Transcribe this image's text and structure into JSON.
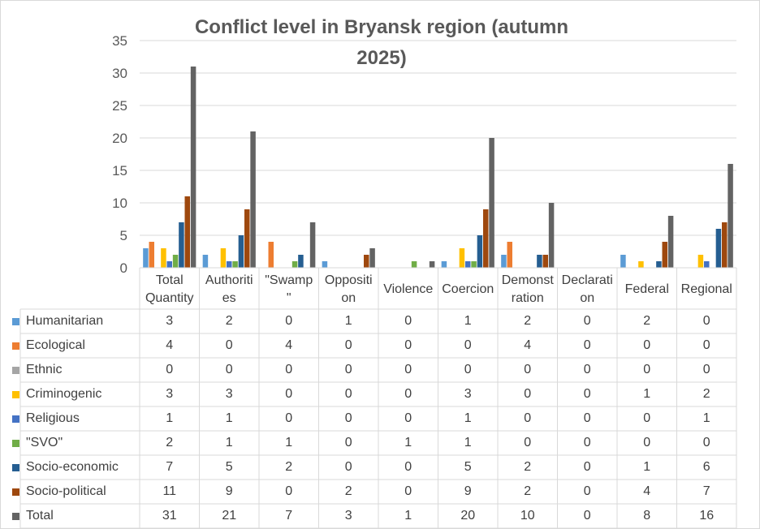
{
  "chart_data": {
    "type": "bar",
    "title": "Conflict level in Bryansk region (autumn 2025)",
    "title_lines": [
      "Conflict level in Bryansk region (autumn",
      "2025)"
    ],
    "xlabel": "",
    "ylabel": "",
    "ylim": [
      0,
      35
    ],
    "yticks": [
      0,
      5,
      10,
      15,
      20,
      25,
      30,
      35
    ],
    "grid": true,
    "legend": "data-table-left",
    "categories": [
      "Total Quantity",
      "Authorities",
      "\"Swamp\"",
      "Opposition",
      "Violence",
      "Coercion",
      "Demonstration",
      "Declaration",
      "Federal",
      "Regional"
    ],
    "category_label_lines": [
      [
        "Total",
        "Quantity"
      ],
      [
        "Authoriti",
        "es"
      ],
      [
        "\"Swamp",
        "\""
      ],
      [
        "Oppositi",
        "on"
      ],
      [
        "Violence"
      ],
      [
        "Coercion"
      ],
      [
        "Demonst",
        "ration"
      ],
      [
        "Declarati",
        "on"
      ],
      [
        "Federal"
      ],
      [
        "Regional"
      ]
    ],
    "series": [
      {
        "name": "Humanitarian",
        "color": "#5b9bd5",
        "values": [
          3,
          2,
          0,
          1,
          0,
          1,
          2,
          0,
          2,
          0
        ]
      },
      {
        "name": "Ecological",
        "color": "#ed7d31",
        "values": [
          4,
          0,
          4,
          0,
          0,
          0,
          4,
          0,
          0,
          0
        ]
      },
      {
        "name": "Ethnic",
        "color": "#a5a5a5",
        "values": [
          0,
          0,
          0,
          0,
          0,
          0,
          0,
          0,
          0,
          0
        ]
      },
      {
        "name": "Criminogenic",
        "color": "#ffc000",
        "values": [
          3,
          3,
          0,
          0,
          0,
          3,
          0,
          0,
          1,
          2
        ]
      },
      {
        "name": "Religious",
        "color": "#4472c4",
        "values": [
          1,
          1,
          0,
          0,
          0,
          1,
          0,
          0,
          0,
          1
        ]
      },
      {
        "name": "\"SVO\"",
        "color": "#70ad47",
        "values": [
          2,
          1,
          1,
          0,
          1,
          1,
          0,
          0,
          0,
          0
        ]
      },
      {
        "name": "Socio-economic",
        "color": "#255e91",
        "values": [
          7,
          5,
          2,
          0,
          0,
          5,
          2,
          0,
          1,
          6
        ]
      },
      {
        "name": "Socio-political",
        "color": "#9e480e",
        "values": [
          11,
          9,
          0,
          2,
          0,
          9,
          2,
          0,
          4,
          7
        ]
      },
      {
        "name": "Total",
        "color": "#636363",
        "values": [
          31,
          21,
          7,
          3,
          1,
          20,
          10,
          0,
          8,
          16
        ]
      }
    ]
  }
}
